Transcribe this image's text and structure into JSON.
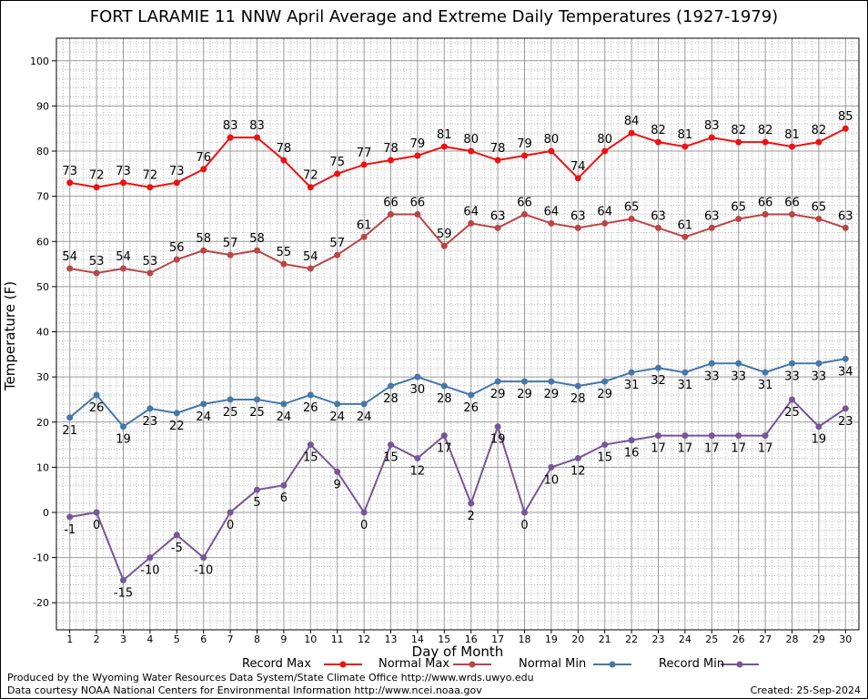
{
  "chart_data": {
    "type": "line",
    "title": "FORT LARAMIE 11 NNW April Average and Extreme Daily Temperatures (1927-1979)",
    "xlabel": "Day of Month",
    "ylabel": "Temperature (F)",
    "x": [
      1,
      2,
      3,
      4,
      5,
      6,
      7,
      8,
      9,
      10,
      11,
      12,
      13,
      14,
      15,
      16,
      17,
      18,
      19,
      20,
      21,
      22,
      23,
      24,
      25,
      26,
      27,
      28,
      29,
      30
    ],
    "xlim": [
      0.5,
      30.5
    ],
    "ylim": [
      -26,
      105
    ],
    "yticks": [
      -20,
      -10,
      0,
      10,
      20,
      30,
      40,
      50,
      60,
      70,
      80,
      90,
      100
    ],
    "grid": true,
    "legend_position": "bottom",
    "series": [
      {
        "name": "Record Max",
        "color": "#ee1111",
        "label_pos": "above",
        "values": [
          73,
          72,
          73,
          72,
          73,
          76,
          83,
          83,
          78,
          72,
          75,
          77,
          78,
          79,
          81,
          80,
          78,
          79,
          80,
          74,
          80,
          84,
          82,
          81,
          83,
          82,
          82,
          81,
          82,
          85
        ]
      },
      {
        "name": "Normal Max",
        "color": "#bb4444",
        "label_pos": "above",
        "values": [
          54,
          53,
          54,
          53,
          56,
          58,
          57,
          58,
          55,
          54,
          57,
          61,
          66,
          66,
          59,
          64,
          63,
          66,
          64,
          63,
          64,
          65,
          63,
          61,
          63,
          65,
          66,
          66,
          65,
          63
        ]
      },
      {
        "name": "Normal Min",
        "color": "#4477aa",
        "label_pos": "below",
        "values": [
          21,
          26,
          19,
          23,
          22,
          24,
          25,
          25,
          24,
          26,
          24,
          24,
          28,
          30,
          28,
          26,
          29,
          29,
          29,
          28,
          29,
          31,
          32,
          31,
          33,
          33,
          31,
          33,
          33,
          34
        ]
      },
      {
        "name": "Record Min",
        "color": "#775599",
        "label_pos": "below",
        "values": [
          -1,
          0,
          -15,
          -10,
          -5,
          -10,
          0,
          5,
          6,
          15,
          9,
          0,
          15,
          12,
          17,
          2,
          19,
          0,
          10,
          12,
          15,
          16,
          17,
          17,
          17,
          17,
          17,
          25,
          19,
          23
        ]
      }
    ]
  },
  "footer": {
    "credit_line1": "Produced by the Wyoming Water Resources Data System/State Climate Office http://www.wrds.uwyo.edu",
    "credit_line2": "Data courtesy NOAA National Centers for Environmental Information http://www.ncei.noaa.gov",
    "created": "Created:  25-Sep-2024"
  }
}
